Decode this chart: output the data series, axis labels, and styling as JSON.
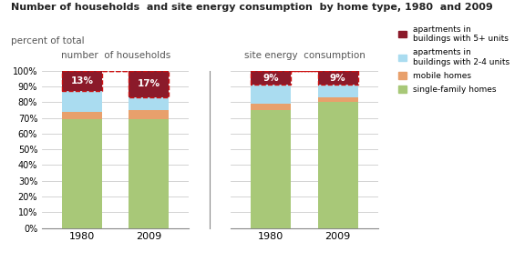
{
  "title_line1": "Number of households  and site energy consumption  by home type, 1980  and 2009",
  "title_line2": "percent of total",
  "group1_label": "number  of households",
  "group2_label": "site energy  consumption",
  "colors": [
    "#a8c878",
    "#e8a06c",
    "#aadcf0",
    "#8b1a2a"
  ],
  "data": [
    [
      69,
      5,
      13,
      13
    ],
    [
      69,
      6,
      8,
      17
    ],
    [
      75,
      4,
      12,
      9
    ],
    [
      80,
      3,
      8,
      9
    ]
  ],
  "labels_top": [
    "13%",
    "17%",
    "9%",
    "9%"
  ],
  "bg_color": "#ffffff",
  "grid_color": "#cccccc",
  "legend_labels": [
    "apartments in\nbuildings with 5+ units",
    "apartments in\nbuildings with 2-4 units",
    "mobile homes",
    "single-family homes"
  ],
  "legend_colors": [
    "#8b1a2a",
    "#aadcf0",
    "#e8a06c",
    "#a8c878"
  ]
}
